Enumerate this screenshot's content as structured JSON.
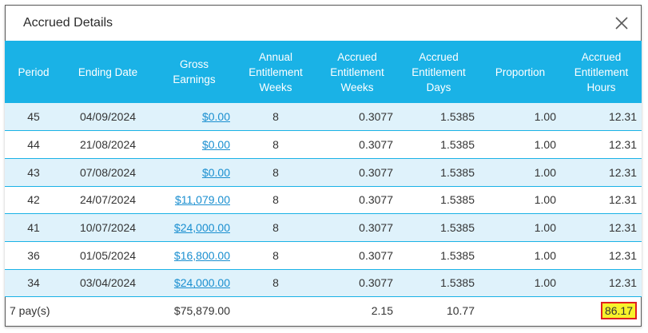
{
  "dialog": {
    "title": "Accrued Details"
  },
  "columns": [
    "Period",
    "Ending Date",
    "Gross Earnings",
    "Annual Entitlement Weeks",
    "Accrued Entitlement Weeks",
    "Accrued Entitlement Days",
    "Proportion",
    "Accrued Entitlement Hours"
  ],
  "rows": [
    {
      "period": "45",
      "ending_date": "04/09/2024",
      "gross": "$0.00",
      "annual_weeks": "8",
      "accrued_weeks": "0.3077",
      "accrued_days": "1.5385",
      "proportion": "1.00",
      "accrued_hours": "12.31"
    },
    {
      "period": "44",
      "ending_date": "21/08/2024",
      "gross": "$0.00",
      "annual_weeks": "8",
      "accrued_weeks": "0.3077",
      "accrued_days": "1.5385",
      "proportion": "1.00",
      "accrued_hours": "12.31"
    },
    {
      "period": "43",
      "ending_date": "07/08/2024",
      "gross": "$0.00",
      "annual_weeks": "8",
      "accrued_weeks": "0.3077",
      "accrued_days": "1.5385",
      "proportion": "1.00",
      "accrued_hours": "12.31"
    },
    {
      "period": "42",
      "ending_date": "24/07/2024",
      "gross": "$11,079.00",
      "annual_weeks": "8",
      "accrued_weeks": "0.3077",
      "accrued_days": "1.5385",
      "proportion": "1.00",
      "accrued_hours": "12.31"
    },
    {
      "period": "41",
      "ending_date": "10/07/2024",
      "gross": "$24,000.00",
      "annual_weeks": "8",
      "accrued_weeks": "0.3077",
      "accrued_days": "1.5385",
      "proportion": "1.00",
      "accrued_hours": "12.31"
    },
    {
      "period": "36",
      "ending_date": "01/05/2024",
      "gross": "$16,800.00",
      "annual_weeks": "8",
      "accrued_weeks": "0.3077",
      "accrued_days": "1.5385",
      "proportion": "1.00",
      "accrued_hours": "12.31"
    },
    {
      "period": "34",
      "ending_date": "03/04/2024",
      "gross": "$24,000.00",
      "annual_weeks": "8",
      "accrued_weeks": "0.3077",
      "accrued_days": "1.5385",
      "proportion": "1.00",
      "accrued_hours": "12.31"
    }
  ],
  "totals": {
    "pays": "7 pay(s)",
    "gross": "$75,879.00",
    "accrued_weeks": "2.15",
    "accrued_days": "10.77",
    "accrued_hours": "86.17"
  },
  "colors": {
    "header_bg": "#1ab2e6",
    "stripe": "#dff2fb",
    "link": "#1a8fd0",
    "highlight": "#f7f22a",
    "highlight_border": "#e02020"
  },
  "icons": {
    "close": "close-icon"
  }
}
